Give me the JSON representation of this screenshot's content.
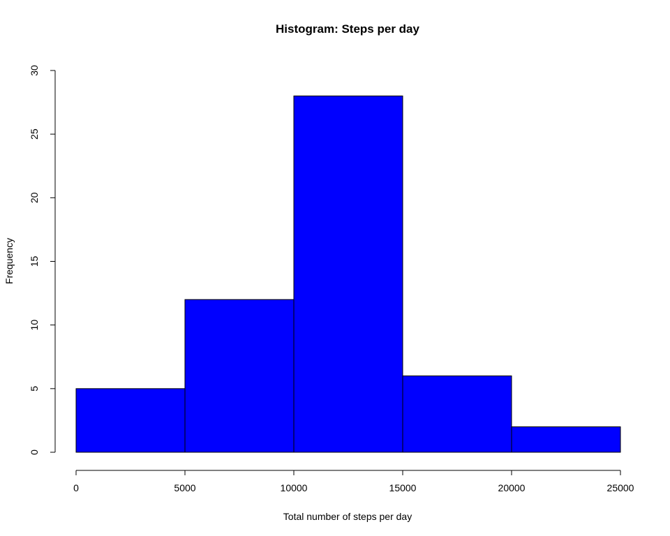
{
  "chart_data": {
    "type": "bar",
    "subtype": "histogram",
    "title": "Histogram: Steps per day",
    "xlabel": "Total number of steps per day",
    "ylabel": "Frequency",
    "bins": [
      {
        "from": 0,
        "to": 5000,
        "count": 5
      },
      {
        "from": 5000,
        "to": 10000,
        "count": 12
      },
      {
        "from": 10000,
        "to": 15000,
        "count": 28
      },
      {
        "from": 15000,
        "to": 20000,
        "count": 6
      },
      {
        "from": 20000,
        "to": 25000,
        "count": 2
      }
    ],
    "xlim": [
      0,
      25000
    ],
    "ylim": [
      0,
      30
    ],
    "x_ticks": [
      0,
      5000,
      10000,
      15000,
      20000,
      25000
    ],
    "x_tick_labels": [
      "0",
      "5000",
      "10000",
      "15000",
      "20000",
      "25000"
    ],
    "y_ticks": [
      0,
      5,
      10,
      15,
      20,
      25,
      30
    ],
    "y_tick_labels": [
      "0",
      "5",
      "10",
      "15",
      "20",
      "25",
      "30"
    ],
    "grid": false,
    "bar_color": "#0000ff",
    "edge_color": "#000000"
  }
}
